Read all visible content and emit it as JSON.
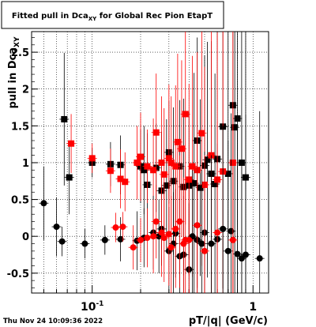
{
  "chart_data": {
    "type": "scatter",
    "title": "Fitted pull in Dca",
    "title_subscript": "XY",
    "title_suffix": " for Global Rec Pion EtapT",
    "ylabel": "pull in Dca",
    "ylabel_subscript": "XY",
    "xlabel": "pT/|q| (GeV/c)",
    "x_scale": "log",
    "xlim": [
      0.042,
      1.25
    ],
    "ylim": [
      -0.77,
      2.78
    ],
    "y_ticks": [
      -0.5,
      0,
      0.5,
      1,
      1.5,
      2,
      2.5
    ],
    "y_tick_labels": [
      "-0.5",
      "0",
      "0.5",
      "1",
      "1.5",
      "2",
      "2.5"
    ],
    "x_tick_labels": [
      {
        "value": 0.1,
        "base": "10",
        "exp": "-1"
      },
      {
        "value": 1,
        "text": "1"
      }
    ],
    "grid": true,
    "timestamp": "Thu Nov 24 10:09:36 2022",
    "colors": {
      "black": "#000000",
      "red": "#ff0000"
    },
    "series": [
      {
        "marker": "square",
        "color": "#000000",
        "x": [
          0.067,
          0.072,
          0.1,
          0.13,
          0.15,
          0.2,
          0.21,
          0.22,
          0.25,
          0.27,
          0.29,
          0.3,
          0.32,
          0.35,
          0.37,
          0.4,
          0.43,
          0.45,
          0.47,
          0.5,
          0.52,
          0.55,
          0.58,
          0.6,
          0.65,
          0.7,
          0.75,
          0.77,
          0.8,
          0.85,
          0.9
        ],
        "y": [
          1.59,
          0.8,
          1.0,
          0.98,
          0.97,
          0.95,
          0.9,
          0.7,
          0.93,
          0.62,
          0.69,
          1.14,
          0.75,
          0.95,
          0.67,
          0.69,
          0.72,
          1.3,
          0.66,
          0.96,
          1.04,
          0.85,
          0.71,
          1.05,
          1.49,
          0.85,
          1.78,
          1.48,
          1.6,
          1.0,
          0.8
        ],
        "y_err": [
          0.9,
          0.5,
          0.2,
          0.3,
          0.4,
          0.5,
          0.6,
          0.7,
          0.6,
          0.8,
          0.9,
          0.7,
          1.0,
          0.9,
          1.2,
          1.0,
          1.5,
          1.4,
          1.2,
          1.5,
          1.6,
          1.8,
          1.5,
          2.0,
          2.2,
          2.4,
          2.8,
          2.9,
          3.0,
          3.0,
          3.0
        ]
      },
      {
        "marker": "square",
        "color": "#ff0000",
        "x": [
          0.074,
          0.1,
          0.13,
          0.15,
          0.16,
          0.19,
          0.2,
          0.22,
          0.24,
          0.25,
          0.27,
          0.28,
          0.3,
          0.31,
          0.33,
          0.34,
          0.36,
          0.38,
          0.4,
          0.42,
          0.45,
          0.48,
          0.5,
          0.55,
          0.6,
          0.65,
          0.75
        ],
        "y": [
          1.26,
          1.06,
          0.89,
          0.78,
          0.74,
          1.0,
          1.08,
          0.95,
          0.9,
          1.41,
          1.0,
          0.84,
          1.06,
          1.0,
          0.95,
          1.28,
          1.19,
          1.66,
          0.77,
          0.95,
          0.9,
          1.4,
          0.7,
          1.1,
          0.77,
          0.88,
          1.0
        ],
        "y_err": [
          0.4,
          0.2,
          0.3,
          0.4,
          0.4,
          0.5,
          0.6,
          0.5,
          0.7,
          0.8,
          0.9,
          0.9,
          1.0,
          0.9,
          1.1,
          1.2,
          1.2,
          1.5,
          1.3,
          1.5,
          1.6,
          1.8,
          1.6,
          1.9,
          2.0,
          2.2,
          2.4
        ]
      },
      {
        "marker": "circle",
        "color": "#000000",
        "x": [
          0.05,
          0.06,
          0.065,
          0.09,
          0.12,
          0.15,
          0.19,
          0.21,
          0.24,
          0.26,
          0.27,
          0.3,
          0.32,
          0.33,
          0.35,
          0.37,
          0.4,
          0.42,
          0.45,
          0.48,
          0.5,
          0.55,
          0.6,
          0.65,
          0.7,
          0.73,
          0.8,
          0.85,
          0.9,
          1.1
        ],
        "y": [
          0.45,
          0.13,
          -0.07,
          -0.1,
          -0.05,
          -0.04,
          -0.06,
          -0.02,
          0.05,
          0.0,
          0.1,
          -0.2,
          -0.1,
          0.04,
          -0.27,
          -0.25,
          -0.45,
          0.0,
          -0.05,
          -0.1,
          0.05,
          -0.1,
          -0.04,
          0.1,
          -0.2,
          0.07,
          -0.24,
          -0.3,
          -0.25,
          -0.3
        ],
        "y_err": [
          0.5,
          0.4,
          0.2,
          0.2,
          0.2,
          0.3,
          0.4,
          0.4,
          0.5,
          0.5,
          0.5,
          0.6,
          0.7,
          0.6,
          0.8,
          0.8,
          0.9,
          0.9,
          1.0,
          1.0,
          1.1,
          1.2,
          1.3,
          1.4,
          1.5,
          1.6,
          1.7,
          1.8,
          1.9,
          2.0
        ]
      },
      {
        "marker": "circle",
        "color": "#ff0000",
        "x": [
          0.14,
          0.155,
          0.18,
          0.2,
          0.22,
          0.24,
          0.25,
          0.27,
          0.28,
          0.3,
          0.31,
          0.33,
          0.35,
          0.37,
          0.38,
          0.4,
          0.45,
          0.5,
          0.6,
          0.75
        ],
        "y": [
          0.12,
          0.13,
          -0.15,
          -0.05,
          -0.02,
          0.0,
          0.2,
          0.05,
          -0.02,
          0.03,
          -0.15,
          0.1,
          0.2,
          -0.1,
          -0.05,
          -0.05,
          0.15,
          -0.2,
          0.05,
          -0.05
        ],
        "y_err": [
          0.2,
          0.2,
          0.3,
          0.3,
          0.4,
          0.5,
          0.5,
          0.6,
          0.6,
          0.7,
          0.7,
          0.8,
          0.9,
          0.9,
          1.0,
          1.0,
          1.2,
          1.3,
          1.5,
          1.8
        ]
      }
    ]
  }
}
